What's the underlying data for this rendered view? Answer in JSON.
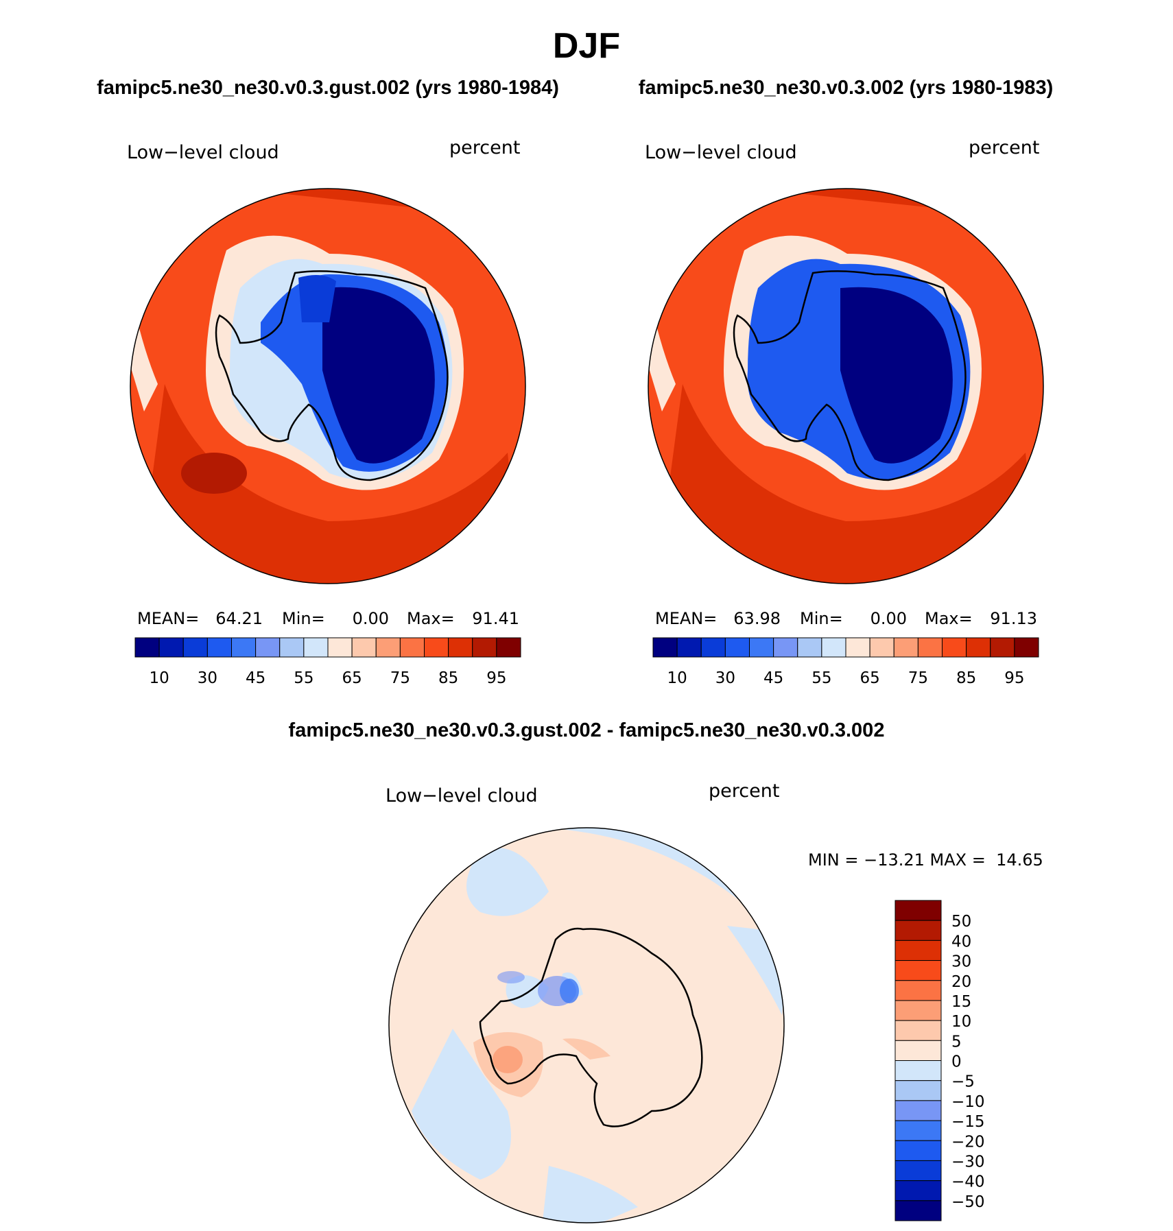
{
  "title": "DJF",
  "panels": [
    {
      "case_title": "famipc5.ne30_ne30.v0.3.gust.002 (yrs 1980-1984)",
      "variable": "Low−level cloud",
      "units": "percent",
      "stats": {
        "mean_label": "MEAN=",
        "mean": "64.21",
        "min_label": "Min=",
        "min": "0.00",
        "max_label": "Max=",
        "max": "91.41"
      },
      "colorbar": {
        "colors": [
          "#000080",
          "#0019b0",
          "#0a3cd8",
          "#1e5af0",
          "#3c78f5",
          "#7896f5",
          "#aac8f5",
          "#d2e6fa",
          "#fde7d8",
          "#fdc9ad",
          "#fc9e76",
          "#fb7344",
          "#f84b1a",
          "#dd3005",
          "#b31a02",
          "#7f0000"
        ],
        "labels": [
          "10",
          "30",
          "45",
          "55",
          "65",
          "75",
          "85",
          "95"
        ]
      }
    },
    {
      "case_title": "famipc5.ne30_ne30.v0.3.002 (yrs 1980-1983)",
      "variable": "Low−level cloud",
      "units": "percent",
      "stats": {
        "mean_label": "MEAN=",
        "mean": "63.98",
        "min_label": "Min=",
        "min": "0.00",
        "max_label": "Max=",
        "max": "91.13"
      },
      "colorbar": {
        "colors": [
          "#000080",
          "#0019b0",
          "#0a3cd8",
          "#1e5af0",
          "#3c78f5",
          "#7896f5",
          "#aac8f5",
          "#d2e6fa",
          "#fde7d8",
          "#fdc9ad",
          "#fc9e76",
          "#fb7344",
          "#f84b1a",
          "#dd3005",
          "#b31a02",
          "#7f0000"
        ],
        "labels": [
          "10",
          "30",
          "45",
          "55",
          "65",
          "75",
          "85",
          "95"
        ]
      }
    }
  ],
  "difference": {
    "title": "famipc5.ne30_ne30.v0.3.gust.002 - famipc5.ne30_ne30.v0.3.002",
    "variable": "Low−level cloud",
    "units": "percent",
    "stats": "MIN = −13.21 MAX =  14.65",
    "colorbar": {
      "colors": [
        "#7f0000",
        "#b31a02",
        "#dd3005",
        "#f84b1a",
        "#fb7344",
        "#fc9e76",
        "#fdc9ad",
        "#fde7d8",
        "#d2e6fa",
        "#aac8f5",
        "#7896f5",
        "#3c78f5",
        "#1e5af0",
        "#0a3cd8",
        "#0019b0",
        "#000080"
      ],
      "labels": [
        "50",
        "40",
        "30",
        "20",
        "15",
        "10",
        "5",
        "0",
        "−5",
        "−10",
        "−15",
        "−20",
        "−30",
        "−40",
        "−50"
      ]
    }
  },
  "map_colors": {
    "ocean_high": "#dd3005",
    "ocean_mid": "#f84b1a",
    "ice_margin": "#fde7d8",
    "land_low": "#000080",
    "land_mid": "#1e5af0",
    "diff_pos": "#fde7d8",
    "diff_neg": "#d2e6fa",
    "diff_pos2": "#fc9e76",
    "diff_neg2": "#7896f5"
  }
}
